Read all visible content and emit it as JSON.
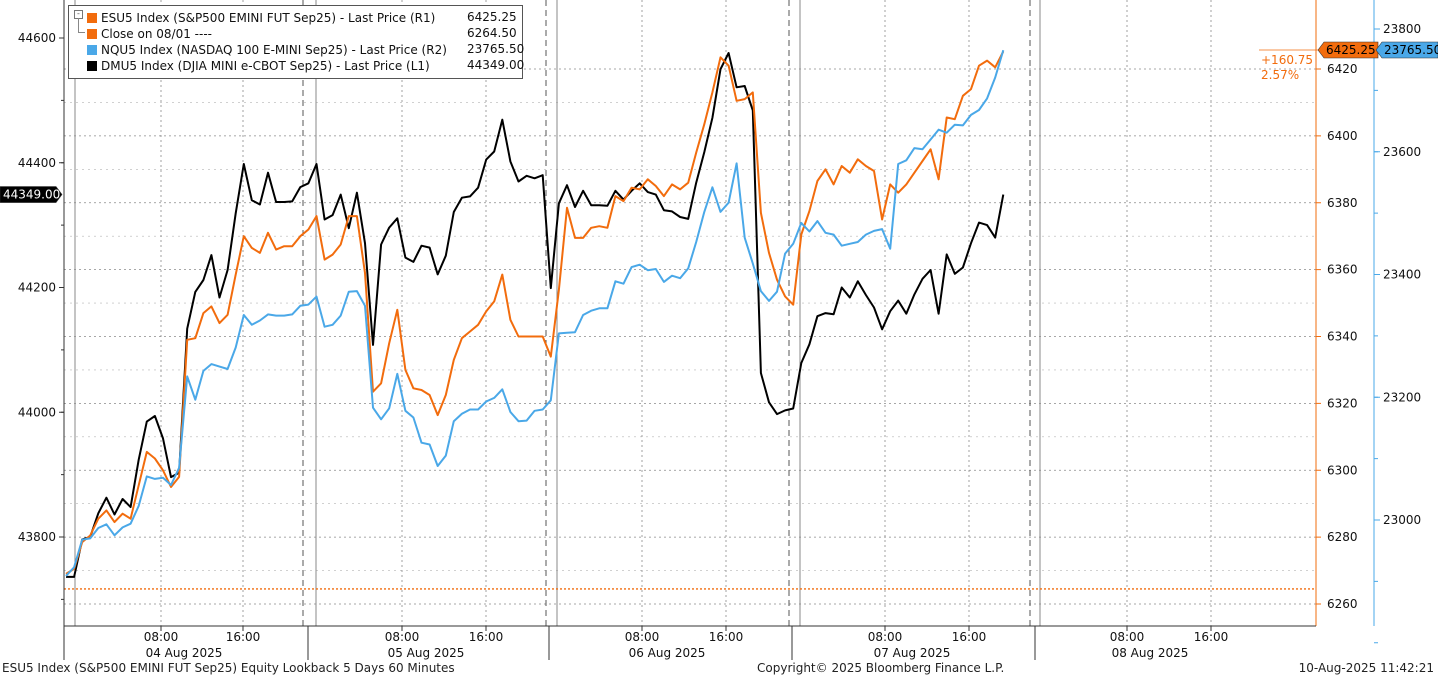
{
  "legend": [
    {
      "label": "ESU5 Index (S&P500 EMINI FUT  Sep25) - Last Price (R1)",
      "value": "6425.25",
      "color": "#f26c0d"
    },
    {
      "label": "Close on 08/01 ----",
      "value": "6264.50",
      "color": "#f26c0d"
    },
    {
      "label": "NQU5 Index (NASDAQ 100 E-MINI Sep25) - Last Price (R2)",
      "value": "23765.50",
      "color": "#4aa8e8"
    },
    {
      "label": "DMU5 Index (DJIA MINI e-CBOT  Sep25) - Last Price (L1)",
      "value": "44349.00",
      "color": "#000000"
    }
  ],
  "footer": {
    "left": "ESU5 Index (S&P500 EMINI FUT  Sep25) Equity Lookback 5 Days 60 Minutes",
    "center": "Copyright© 2025 Bloomberg Finance L.P.",
    "right": "10-Aug-2025 11:42:21"
  },
  "chart_data": {
    "type": "line",
    "x_tick_labels": [
      "08:00",
      "16:00",
      "08:00",
      "16:00",
      "08:00",
      "16:00",
      "08:00",
      "16:00",
      "08:00",
      "16:00"
    ],
    "day_labels": [
      "04 Aug 2025",
      "05 Aug 2025",
      "06 Aug 2025",
      "07 Aug 2025",
      "08 Aug 2025"
    ],
    "axes": {
      "L1": {
        "ticks": [
          43800,
          44000,
          44200,
          44400,
          44600
        ],
        "range": [
          43700,
          44600
        ],
        "last_label": "44349.00",
        "label_color": "#000000"
      },
      "R1": {
        "ticks": [
          6260,
          6280,
          6300,
          6320,
          6340,
          6360,
          6380,
          6400,
          6420
        ],
        "range": [
          6260,
          6420
        ],
        "last_label": "6425.25",
        "label_color": "#f26c0d",
        "reference_line": 6264.5
      },
      "R2": {
        "ticks": [
          23000,
          23200,
          23400,
          23600,
          23800
        ],
        "range": [
          22800,
          23800
        ],
        "last_label": "23765.50",
        "label_color": "#4aa8e8"
      }
    },
    "annotation": {
      "change": "+160.75",
      "percent": "2.57%"
    },
    "grid": true,
    "series": [
      {
        "name": "DMU5 Index (DJIA MINI e-CBOT  Sep25) - Last Price (L1)",
        "axis": "L1",
        "color": "#000000",
        "values": [
          43736,
          43736,
          43796,
          43800,
          43838,
          43863,
          43836,
          43861,
          43848,
          43924,
          43985,
          43994,
          43958,
          43896,
          43903,
          44134,
          44193,
          44212,
          44252,
          44184,
          44228,
          44319,
          44398,
          44340,
          44333,
          44384,
          44337,
          44337,
          44338,
          44361,
          44367,
          44398,
          44309,
          44316,
          44349,
          44295,
          44352,
          44271,
          44108,
          44269,
          44296,
          44311,
          44248,
          44241,
          44267,
          44264,
          44221,
          44251,
          44321,
          44344,
          44346,
          44360,
          44405,
          44418,
          44469,
          44402,
          44370,
          44379,
          44375,
          44380,
          44199,
          44335,
          44364,
          44329,
          44355,
          44332,
          44332,
          44331,
          44355,
          44341,
          44355,
          44367,
          44353,
          44349,
          44324,
          44322,
          44313,
          44310,
          44368,
          44417,
          44472,
          44550,
          44576,
          44521,
          44523,
          44484,
          44063,
          44016,
          43997,
          44003,
          44006,
          44079,
          44109,
          44154,
          44159,
          44157,
          44200,
          44184,
          44210,
          44188,
          44168,
          44133,
          44162,
          44179,
          44158,
          44189,
          44214,
          44228,
          44158,
          44253,
          44222,
          44232,
          44271,
          44304,
          44300,
          44280,
          44349
        ]
      },
      {
        "name": "ESU5 Index (S&P500 EMINI FUT  Sep25) - Last Price (R1)",
        "axis": "R1",
        "color": "#f26c0d",
        "values": [
          6269.0,
          6270.5,
          6278.5,
          6280.5,
          6285.5,
          6288.0,
          6284.5,
          6287.0,
          6285.5,
          6295.5,
          6305.5,
          6303.5,
          6300.0,
          6295.0,
          6298.0,
          6339.0,
          6339.5,
          6347.0,
          6349.0,
          6344.0,
          6346.5,
          6358.5,
          6370.0,
          6366.5,
          6365.0,
          6371.0,
          6366.0,
          6367.0,
          6367.0,
          6370.0,
          6372.0,
          6376.0,
          6363.0,
          6364.5,
          6367.5,
          6376.0,
          6376.0,
          6359.0,
          6323.5,
          6326.0,
          6338.0,
          6348.0,
          6330.0,
          6324.5,
          6324.0,
          6322.5,
          6316.5,
          6322.5,
          6333.0,
          6339.5,
          6341.5,
          6343.5,
          6347.5,
          6350.5,
          6358.5,
          6345.0,
          6340.0,
          6340.0,
          6340.0,
          6340.0,
          6334.0,
          6354.0,
          6378.5,
          6369.5,
          6369.5,
          6372.5,
          6373.0,
          6372.5,
          6382.0,
          6380.5,
          6384.5,
          6384.0,
          6387.0,
          6385.0,
          6382.0,
          6385.5,
          6384.0,
          6386.0,
          6395.0,
          6403.5,
          6413.0,
          6423.5,
          6421.0,
          6410.5,
          6411.0,
          6413.0,
          6377.0,
          6365.0,
          6357.0,
          6352.0,
          6349.5,
          6370.5,
          6377.5,
          6386.5,
          6390.0,
          6385.5,
          6391.0,
          6389.0,
          6393.0,
          6391.0,
          6389.5,
          6375.0,
          6385.5,
          6383.0,
          6385.5,
          6389.0,
          6392.5,
          6396.0,
          6387.0,
          6405.5,
          6405.0,
          6412.0,
          6414.0,
          6421.0,
          6422.5,
          6420.5,
          6425.25
        ]
      },
      {
        "name": "NQU5 Index (NASDAQ 100 E-MINI Sep25) - Last Price (R2)",
        "axis": "R2",
        "color": "#4aa8e8",
        "values": [
          22909,
          22923,
          22968,
          22970,
          22987,
          22993,
          22975,
          22988,
          22994,
          23023,
          23071,
          23067,
          23069,
          23057,
          23085,
          23234,
          23196,
          23243,
          23254,
          23250,
          23246,
          23281,
          23334,
          23318,
          23325,
          23335,
          23333,
          23333,
          23335,
          23349,
          23351,
          23364,
          23315,
          23318,
          23333,
          23372,
          23373,
          23349,
          23183,
          23164,
          23182,
          23238,
          23178,
          23167,
          23126,
          23123,
          23088,
          23105,
          23161,
          23173,
          23180,
          23180,
          23193,
          23199,
          23213,
          23176,
          23161,
          23162,
          23178,
          23180,
          23195,
          23304,
          23305,
          23306,
          23334,
          23341,
          23345,
          23345,
          23389,
          23385,
          23412,
          23416,
          23407,
          23409,
          23388,
          23398,
          23394,
          23410,
          23453,
          23502,
          23542,
          23502,
          23517,
          23581,
          23460,
          23418,
          23373,
          23357,
          23372,
          23434,
          23450,
          23484,
          23470,
          23487,
          23468,
          23465,
          23447,
          23450,
          23453,
          23465,
          23471,
          23474,
          23442,
          23580,
          23586,
          23606,
          23604,
          23620,
          23636,
          23631,
          23644,
          23643,
          23660,
          23668,
          23687,
          23721,
          23765.5
        ]
      }
    ]
  }
}
